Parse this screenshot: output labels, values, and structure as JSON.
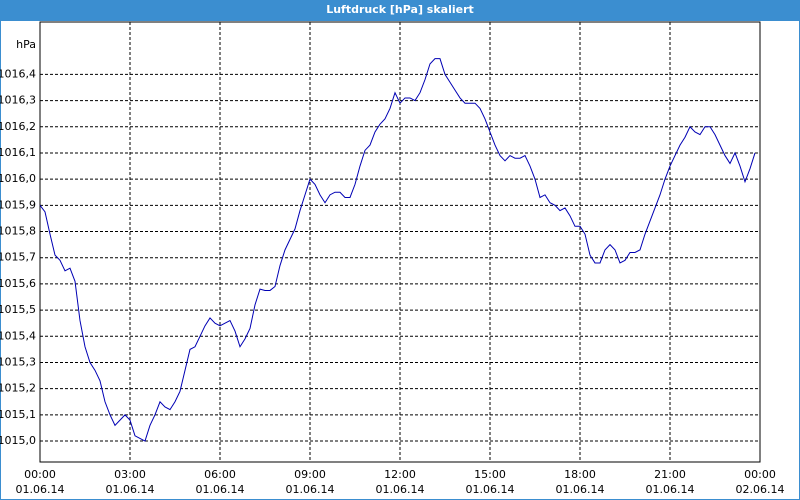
{
  "chart_data": {
    "type": "line",
    "title": "Luftdruck [hPa] skaliert",
    "y_label": "hPa",
    "x": [
      0,
      10,
      20,
      30,
      40,
      50,
      60,
      70,
      80,
      90,
      100,
      110,
      120,
      130,
      140,
      150,
      160,
      170,
      180,
      190,
      200,
      210,
      220,
      230,
      240,
      250,
      260,
      270,
      280,
      290,
      300,
      310,
      320,
      330,
      340,
      350,
      360,
      370,
      380,
      390,
      400,
      410,
      420,
      430,
      440,
      450,
      460,
      470,
      480,
      490,
      500,
      510,
      520,
      530,
      540,
      550,
      560,
      570,
      580,
      590,
      600,
      610,
      620,
      630,
      640,
      650,
      660,
      670,
      680,
      690,
      700,
      710,
      720,
      730,
      740,
      750,
      760,
      770,
      780,
      790,
      800,
      810,
      820,
      830,
      840,
      850,
      860,
      870,
      880,
      890,
      900,
      910,
      920,
      930,
      940,
      950,
      960,
      970,
      980,
      990,
      1000,
      1010,
      1020,
      1030,
      1040,
      1050,
      1060,
      1070,
      1080,
      1090,
      1100,
      1110,
      1120,
      1130,
      1140,
      1150,
      1160,
      1170,
      1180,
      1190,
      1200,
      1210,
      1220,
      1230,
      1240,
      1250,
      1260,
      1270,
      1280,
      1290,
      1300,
      1310,
      1320,
      1330,
      1340,
      1350,
      1360,
      1370,
      1380,
      1390,
      1400,
      1410,
      1420,
      1430
    ],
    "series": [
      {
        "color": "#0000b4",
        "values": [
          1015.9,
          1015.875,
          1015.79,
          1015.71,
          1015.69,
          1015.65,
          1015.66,
          1015.61,
          1015.46,
          1015.36,
          1015.3,
          1015.27,
          1015.23,
          1015.15,
          1015.1,
          1015.06,
          1015.08,
          1015.1,
          1015.08,
          1015.02,
          1015.01,
          1015.0,
          1015.06,
          1015.1,
          1015.15,
          1015.13,
          1015.12,
          1015.15,
          1015.19,
          1015.27,
          1015.35,
          1015.36,
          1015.4,
          1015.44,
          1015.47,
          1015.45,
          1015.44,
          1015.45,
          1015.46,
          1015.42,
          1015.36,
          1015.39,
          1015.43,
          1015.52,
          1015.58,
          1015.575,
          1015.575,
          1015.59,
          1015.67,
          1015.73,
          1015.77,
          1015.81,
          1015.88,
          1015.94,
          1016.0,
          1015.98,
          1015.94,
          1015.91,
          1015.94,
          1015.95,
          1015.95,
          1015.93,
          1015.93,
          1015.98,
          1016.05,
          1016.11,
          1016.13,
          1016.18,
          1016.21,
          1016.23,
          1016.27,
          1016.33,
          1016.29,
          1016.31,
          1016.31,
          1016.3,
          1016.33,
          1016.38,
          1016.44,
          1016.46,
          1016.46,
          1016.4,
          1016.37,
          1016.34,
          1016.31,
          1016.29,
          1016.29,
          1016.29,
          1016.27,
          1016.23,
          1016.18,
          1016.13,
          1016.09,
          1016.07,
          1016.09,
          1016.08,
          1016.08,
          1016.09,
          1016.05,
          1016.0,
          1015.93,
          1015.94,
          1015.91,
          1015.9,
          1015.88,
          1015.89,
          1015.86,
          1015.82,
          1015.82,
          1015.79,
          1015.71,
          1015.68,
          1015.68,
          1015.73,
          1015.75,
          1015.73,
          1015.68,
          1015.69,
          1015.72,
          1015.72,
          1015.73,
          1015.79,
          1015.84,
          1015.89,
          1015.94,
          1016.0,
          1016.05,
          1016.09,
          1016.13,
          1016.16,
          1016.2,
          1016.18,
          1016.17,
          1016.2,
          1016.2,
          1016.17,
          1016.13,
          1016.09,
          1016.06,
          1016.1,
          1016.05,
          1015.99,
          1016.04,
          1016.1
        ]
      }
    ],
    "xlim": [
      0,
      1440
    ],
    "xticks": [
      {
        "value": 0,
        "label": "00:00",
        "date": "01.06.14"
      },
      {
        "value": 180,
        "label": "03:00",
        "date": "01.06.14"
      },
      {
        "value": 360,
        "label": "06:00",
        "date": "01.06.14"
      },
      {
        "value": 540,
        "label": "09:00",
        "date": "01.06.14"
      },
      {
        "value": 720,
        "label": "12:00",
        "date": "01.06.14"
      },
      {
        "value": 900,
        "label": "15:00",
        "date": "01.06.14"
      },
      {
        "value": 1080,
        "label": "18:00",
        "date": "01.06.14"
      },
      {
        "value": 1260,
        "label": "21:00",
        "date": "01.06.14"
      },
      {
        "value": 1440,
        "label": "00:00",
        "date": "02.06.14"
      }
    ],
    "ylim": [
      1014.92,
      1016.6
    ],
    "yticks": [
      {
        "value": 1015.0,
        "label": "1015,0"
      },
      {
        "value": 1015.1,
        "label": "1015,1"
      },
      {
        "value": 1015.2,
        "label": "1015,2"
      },
      {
        "value": 1015.3,
        "label": "1015,3"
      },
      {
        "value": 1015.4,
        "label": "1015,4"
      },
      {
        "value": 1015.5,
        "label": "1015,5"
      },
      {
        "value": 1015.6,
        "label": "1015,6"
      },
      {
        "value": 1015.7,
        "label": "1015,7"
      },
      {
        "value": 1015.8,
        "label": "1015,8"
      },
      {
        "value": 1015.9,
        "label": "1015,9"
      },
      {
        "value": 1016.0,
        "label": "1016,0"
      },
      {
        "value": 1016.1,
        "label": "1016,1"
      },
      {
        "value": 1016.2,
        "label": "1016,2"
      },
      {
        "value": 1016.3,
        "label": "1016,3"
      },
      {
        "value": 1016.4,
        "label": "1016,4"
      }
    ],
    "grid": true
  }
}
